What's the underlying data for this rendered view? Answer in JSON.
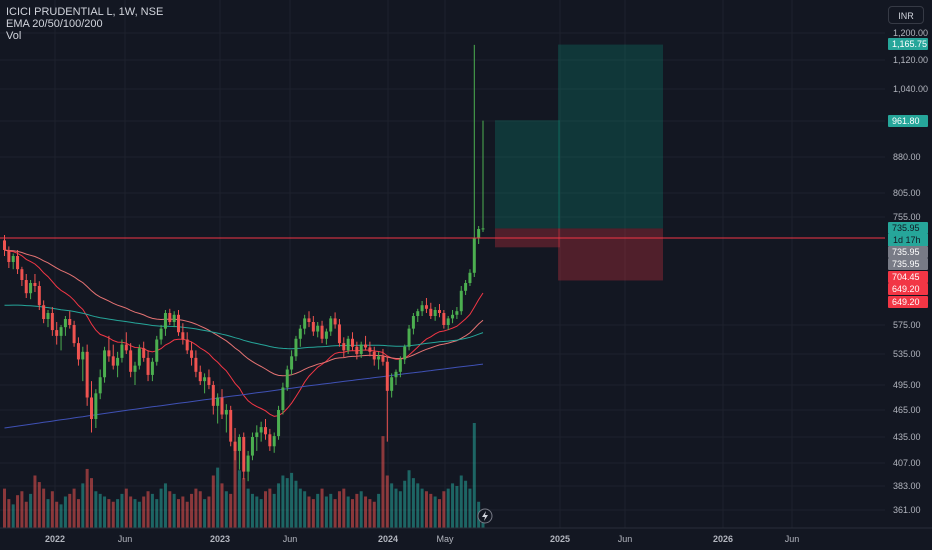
{
  "legend": {
    "symbol": "ICICI PRUDENTIAL L, 1W, NSE",
    "ema": "EMA 20/50/100/200",
    "vol": "Vol"
  },
  "currency": "INR",
  "chart_data": {
    "type": "candlestick",
    "y_ticks": [
      1200,
      1120,
      1040,
      960,
      880,
      805,
      755,
      575,
      535,
      495,
      465,
      435,
      407,
      383,
      361
    ],
    "y_tick_labels": [
      "1,200.00",
      "1,120.00",
      "1,040.00",
      "960.00",
      "880.00",
      "805.00",
      "755.00",
      "575.00",
      "535.00",
      "495.00",
      "465.00",
      "435.00",
      "407.00",
      "383.00",
      "361.00"
    ],
    "x_labels": [
      "2022",
      "Jun",
      "2023",
      "Jun",
      "2024",
      "May",
      "2025",
      "Jun",
      "2026",
      "Jun"
    ],
    "current_price": 735.95,
    "countdown": "1d 17h",
    "price_badges": [
      {
        "label": "1,165.75",
        "value": 1165.75,
        "color": "#26a69a"
      },
      {
        "label": "961.80",
        "value": 961.8,
        "color": "#26a69a"
      },
      {
        "label": "735.95",
        "value": 735.95,
        "color": "#26a69a"
      },
      {
        "label": "735.95",
        "value": 715,
        "color": "#787b86"
      },
      {
        "label": "735.95",
        "value": 700,
        "color": "#787b86"
      },
      {
        "label": "704.45",
        "value": 685,
        "color": "#f23645"
      },
      {
        "label": "649.20",
        "value": 668,
        "color": "#f23645"
      },
      {
        "label": "649.20",
        "value": 652,
        "color": "#f23645"
      }
    ],
    "horizontal_line": 720,
    "long_positions": [
      {
        "entry": 735.95,
        "target": 961.8,
        "stop": 704.45
      },
      {
        "entry": 735.95,
        "target": 1165.75,
        "stop": 649.2
      }
    ],
    "ohlc_weekly": [
      [
        716,
        725,
        690,
        700
      ],
      [
        700,
        706,
        670,
        680
      ],
      [
        680,
        694,
        668,
        690
      ],
      [
        690,
        700,
        660,
        668
      ],
      [
        668,
        672,
        640,
        650
      ],
      [
        650,
        660,
        620,
        628
      ],
      [
        628,
        650,
        618,
        645
      ],
      [
        645,
        660,
        630,
        640
      ],
      [
        640,
        648,
        600,
        608
      ],
      [
        608,
        616,
        578,
        585
      ],
      [
        585,
        600,
        572,
        595
      ],
      [
        595,
        605,
        560,
        568
      ],
      [
        568,
        580,
        548,
        560
      ],
      [
        560,
        575,
        540,
        572
      ],
      [
        572,
        590,
        560,
        585
      ],
      [
        585,
        598,
        570,
        575
      ],
      [
        575,
        582,
        545,
        550
      ],
      [
        550,
        558,
        520,
        528
      ],
      [
        528,
        545,
        500,
        538
      ],
      [
        538,
        548,
        470,
        480
      ],
      [
        480,
        500,
        440,
        455
      ],
      [
        455,
        490,
        445,
        485
      ],
      [
        485,
        515,
        478,
        505
      ],
      [
        505,
        545,
        498,
        540
      ],
      [
        540,
        560,
        525,
        532
      ],
      [
        532,
        548,
        515,
        520
      ],
      [
        520,
        538,
        505,
        530
      ],
      [
        530,
        555,
        524,
        548
      ],
      [
        548,
        565,
        535,
        540
      ],
      [
        540,
        550,
        505,
        512
      ],
      [
        512,
        525,
        495,
        520
      ],
      [
        520,
        548,
        515,
        543
      ],
      [
        543,
        552,
        525,
        530
      ],
      [
        530,
        540,
        500,
        508
      ],
      [
        508,
        530,
        500,
        525
      ],
      [
        525,
        560,
        520,
        555
      ],
      [
        555,
        575,
        548,
        570
      ],
      [
        570,
        600,
        560,
        595
      ],
      [
        595,
        602,
        575,
        580
      ],
      [
        580,
        598,
        572,
        592
      ],
      [
        592,
        600,
        560,
        565
      ],
      [
        565,
        578,
        548,
        555
      ],
      [
        555,
        565,
        535,
        540
      ],
      [
        540,
        552,
        520,
        530
      ],
      [
        530,
        540,
        505,
        512
      ],
      [
        512,
        520,
        495,
        500
      ],
      [
        500,
        510,
        485,
        505
      ],
      [
        505,
        515,
        490,
        495
      ],
      [
        495,
        500,
        460,
        470
      ],
      [
        470,
        485,
        450,
        480
      ],
      [
        480,
        490,
        455,
        460
      ],
      [
        460,
        472,
        440,
        465
      ],
      [
        465,
        470,
        425,
        430
      ],
      [
        430,
        445,
        410,
        420
      ],
      [
        420,
        438,
        400,
        435
      ],
      [
        435,
        440,
        390,
        398
      ],
      [
        398,
        420,
        388,
        415
      ],
      [
        415,
        440,
        410,
        435
      ],
      [
        435,
        448,
        420,
        440
      ],
      [
        440,
        452,
        430,
        446
      ],
      [
        446,
        455,
        432,
        438
      ],
      [
        438,
        444,
        420,
        425
      ],
      [
        425,
        440,
        418,
        436
      ],
      [
        436,
        470,
        432,
        465
      ],
      [
        465,
        498,
        460,
        492
      ],
      [
        492,
        520,
        488,
        515
      ],
      [
        515,
        540,
        508,
        532
      ],
      [
        532,
        560,
        526,
        556
      ],
      [
        556,
        575,
        545,
        570
      ],
      [
        570,
        592,
        562,
        586
      ],
      [
        586,
        598,
        572,
        580
      ],
      [
        580,
        590,
        560,
        566
      ],
      [
        566,
        580,
        558,
        574
      ],
      [
        574,
        582,
        550,
        556
      ],
      [
        556,
        570,
        548,
        566
      ],
      [
        566,
        590,
        560,
        586
      ],
      [
        586,
        596,
        570,
        576
      ],
      [
        576,
        585,
        545,
        550
      ],
      [
        550,
        558,
        530,
        540
      ],
      [
        540,
        560,
        535,
        556
      ],
      [
        556,
        565,
        540,
        545
      ],
      [
        545,
        552,
        528,
        535
      ],
      [
        535,
        552,
        530,
        548
      ],
      [
        548,
        560,
        540,
        544
      ],
      [
        544,
        552,
        532,
        538
      ],
      [
        538,
        545,
        520,
        528
      ],
      [
        528,
        538,
        515,
        532
      ],
      [
        532,
        542,
        520,
        525
      ],
      [
        525,
        532,
        430,
        488
      ],
      [
        488,
        510,
        480,
        505
      ],
      [
        505,
        515,
        495,
        512
      ],
      [
        512,
        532,
        505,
        528
      ],
      [
        528,
        548,
        522,
        545
      ],
      [
        545,
        575,
        540,
        570
      ],
      [
        570,
        595,
        562,
        590
      ],
      [
        590,
        602,
        580,
        598
      ],
      [
        598,
        615,
        590,
        608
      ],
      [
        608,
        620,
        595,
        602
      ],
      [
        602,
        612,
        585,
        590
      ],
      [
        590,
        605,
        582,
        600
      ],
      [
        600,
        610,
        588,
        595
      ],
      [
        595,
        600,
        570,
        575
      ],
      [
        575,
        590,
        568,
        586
      ],
      [
        586,
        600,
        578,
        592
      ],
      [
        592,
        605,
        585,
        598
      ],
      [
        598,
        640,
        592,
        632
      ],
      [
        632,
        650,
        625,
        645
      ],
      [
        645,
        668,
        640,
        662
      ],
      [
        662,
        1165,
        655,
        720
      ],
      [
        720,
        740,
        710,
        735
      ],
      [
        735,
        961,
        730,
        736
      ]
    ],
    "volume_weekly": [
      30,
      22,
      18,
      25,
      28,
      20,
      26,
      40,
      35,
      30,
      22,
      28,
      20,
      18,
      24,
      26,
      30,
      22,
      34,
      45,
      38,
      28,
      26,
      24,
      22,
      20,
      22,
      26,
      30,
      24,
      22,
      20,
      24,
      28,
      26,
      22,
      30,
      34,
      28,
      26,
      22,
      24,
      20,
      26,
      30,
      28,
      22,
      24,
      40,
      46,
      34,
      28,
      26,
      60,
      44,
      38,
      30,
      26,
      24,
      22,
      28,
      30,
      26,
      34,
      40,
      38,
      42,
      36,
      30,
      28,
      24,
      22,
      26,
      30,
      24,
      26,
      22,
      28,
      30,
      24,
      22,
      26,
      28,
      24,
      22,
      20,
      26,
      70,
      40,
      34,
      30,
      28,
      36,
      44,
      38,
      34,
      30,
      28,
      26,
      24,
      22,
      28,
      30,
      34,
      32,
      40,
      36,
      30,
      80,
      20,
      10
    ]
  }
}
